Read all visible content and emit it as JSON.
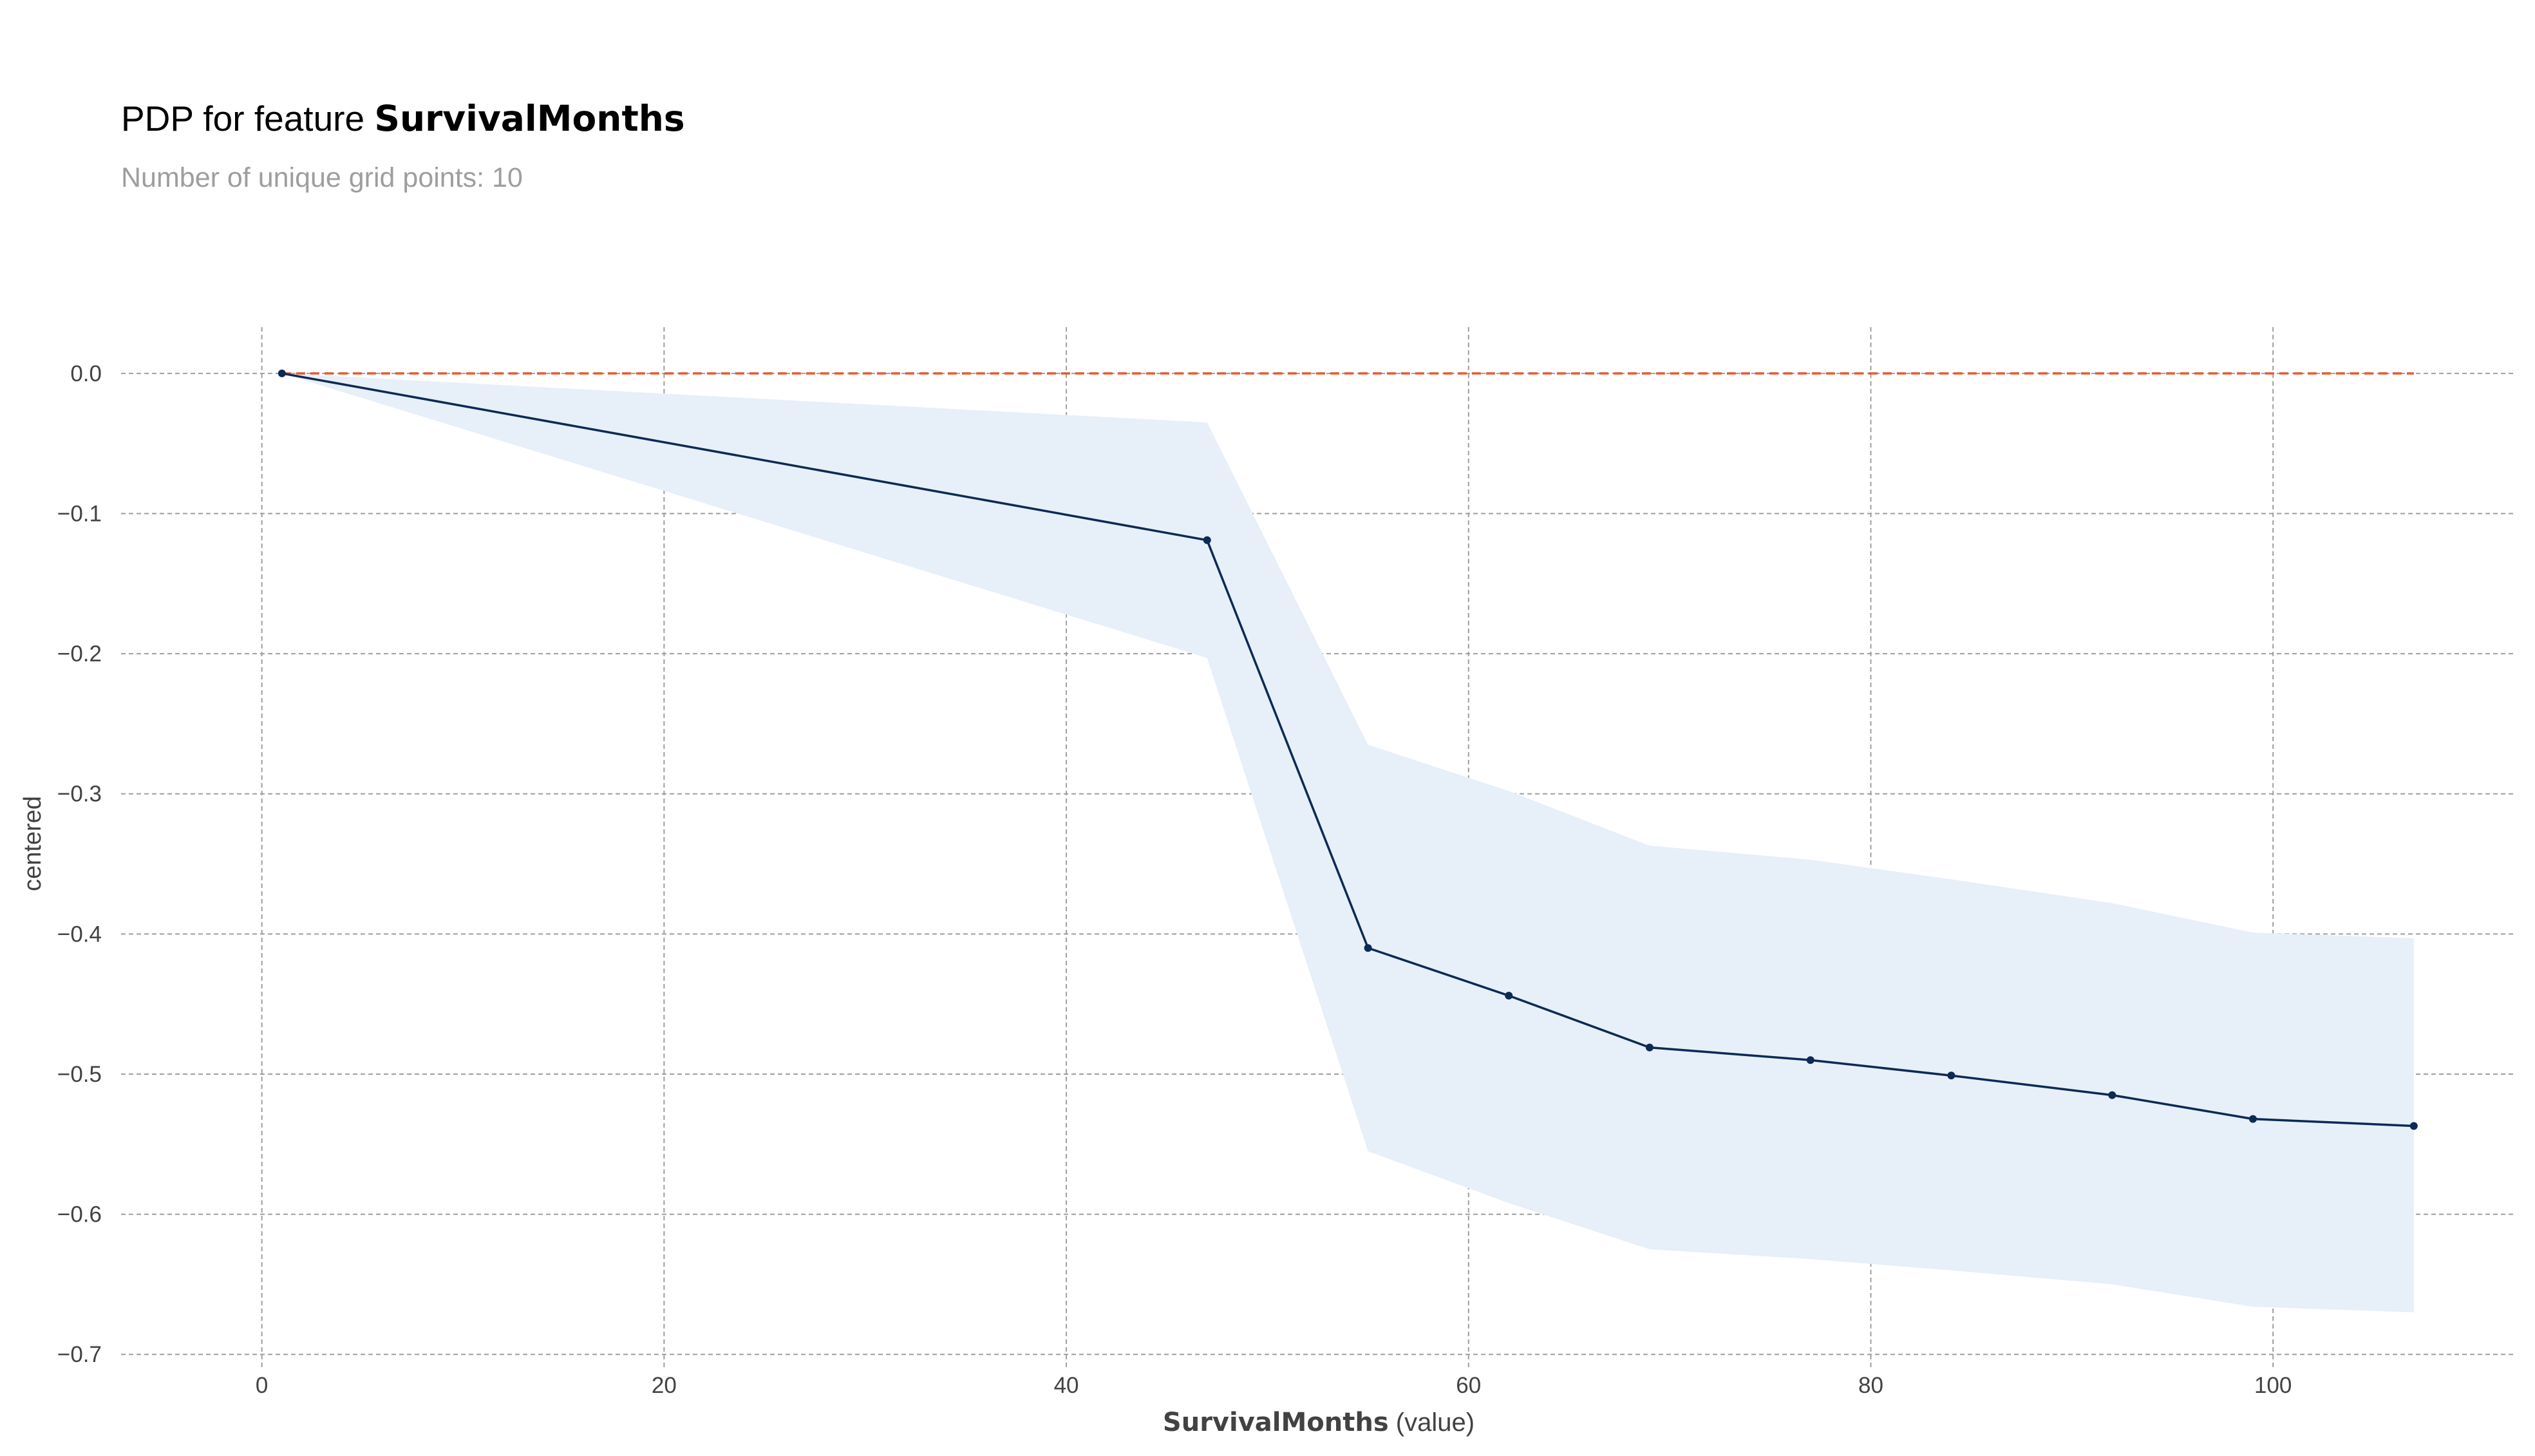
{
  "chart_data": {
    "type": "line",
    "title": {
      "prefix": "PDP for feature ",
      "feature": "SurvivalMonths"
    },
    "subtitle": "Number of unique grid points: 10",
    "xlabel": {
      "feature": "SurvivalMonths",
      "suffix": " (value)"
    },
    "ylabel": "centered",
    "xlim": [
      -7,
      112
    ],
    "ylim": [
      -0.71,
      0.033
    ],
    "xticks": [
      0,
      20,
      40,
      60,
      80,
      100
    ],
    "yticks": [
      0.0,
      -0.1,
      -0.2,
      -0.3,
      -0.4,
      -0.5,
      -0.6,
      -0.7
    ],
    "xtick_labels": [
      "0",
      "20",
      "40",
      "60",
      "80",
      "100"
    ],
    "ytick_labels": [
      "0.0",
      "−0.1",
      "−0.2",
      "−0.3",
      "−0.4",
      "−0.5",
      "−0.6",
      "−0.7"
    ],
    "grid": true,
    "series": [
      {
        "x": [
          1,
          47,
          55,
          62,
          69,
          77,
          84,
          92,
          99,
          107
        ],
        "y": [
          0.0,
          -0.119,
          -0.41,
          -0.444,
          -0.481,
          -0.49,
          -0.501,
          -0.515,
          -0.532,
          -0.537
        ],
        "upper": [
          0.0,
          -0.035,
          -0.265,
          -0.298,
          -0.337,
          -0.347,
          -0.361,
          -0.378,
          -0.399,
          -0.403
        ],
        "lower": [
          0.0,
          -0.203,
          -0.555,
          -0.592,
          -0.625,
          -0.632,
          -0.64,
          -0.65,
          -0.666,
          -0.67
        ]
      }
    ],
    "reference_line": {
      "y": 0,
      "x_range": [
        1,
        107
      ]
    },
    "colors": {
      "line": "#0d2a55",
      "band": "#e7eff9",
      "reference": "#e8582f",
      "grid": "#9e9e9e"
    }
  }
}
